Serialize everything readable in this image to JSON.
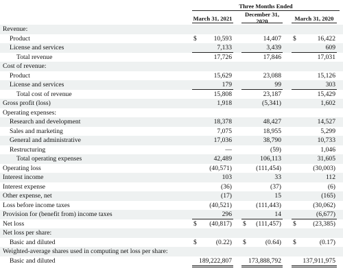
{
  "header": {
    "title": "Three Months Ended",
    "columns": [
      "March 31, 2021",
      "December 31, 2020",
      "March 31, 2020"
    ]
  },
  "table": {
    "rows": [
      {
        "label": "Revenue:"
      },
      {
        "label": "Product",
        "cells": [
          {
            "currency": "$",
            "amount": "10,593"
          },
          {
            "amount": "14,407"
          },
          {
            "currency": "$",
            "amount": "16,422"
          }
        ]
      },
      {
        "label": "License and services",
        "cells": [
          {
            "amount": "7,133"
          },
          {
            "amount": "3,439"
          },
          {
            "amount": "609"
          }
        ]
      },
      {
        "label": "Total revenue",
        "cells": [
          {
            "amount": "17,726"
          },
          {
            "amount": "17,846"
          },
          {
            "amount": "17,031"
          }
        ]
      },
      {
        "label": "Cost of revenue:"
      },
      {
        "label": "Product",
        "cells": [
          {
            "amount": "15,629"
          },
          {
            "amount": "23,088"
          },
          {
            "amount": "15,126"
          }
        ]
      },
      {
        "label": "License and services",
        "cells": [
          {
            "amount": "179"
          },
          {
            "amount": "99"
          },
          {
            "amount": "303"
          }
        ]
      },
      {
        "label": "Total cost of revenue",
        "cells": [
          {
            "amount": "15,808"
          },
          {
            "amount": "23,187"
          },
          {
            "amount": "15,429"
          }
        ]
      },
      {
        "label": "Gross profit (loss)",
        "cells": [
          {
            "amount": "1,918"
          },
          {
            "amount": "(5,341)"
          },
          {
            "amount": "1,602"
          }
        ]
      },
      {
        "label": "Operating expenses:"
      },
      {
        "label": "Research and development",
        "cells": [
          {
            "amount": "18,378"
          },
          {
            "amount": "48,427"
          },
          {
            "amount": "14,527"
          }
        ]
      },
      {
        "label": "Sales and marketing",
        "cells": [
          {
            "amount": "7,075"
          },
          {
            "amount": "18,955"
          },
          {
            "amount": "5,299"
          }
        ]
      },
      {
        "label": "General and administrative",
        "cells": [
          {
            "amount": "17,036"
          },
          {
            "amount": "38,790"
          },
          {
            "amount": "10,733"
          }
        ]
      },
      {
        "label": "Restructuring",
        "cells": [
          {
            "amount": "—"
          },
          {
            "amount": "(59)"
          },
          {
            "amount": "1,046"
          }
        ]
      },
      {
        "label": "Total operating expenses",
        "cells": [
          {
            "amount": "42,489"
          },
          {
            "amount": "106,113"
          },
          {
            "amount": "31,605"
          }
        ]
      },
      {
        "label": "Operating loss",
        "cells": [
          {
            "amount": "(40,571)"
          },
          {
            "amount": "(111,454)"
          },
          {
            "amount": "(30,003)"
          }
        ]
      },
      {
        "label": "Interest income",
        "cells": [
          {
            "amount": "103"
          },
          {
            "amount": "33"
          },
          {
            "amount": "112"
          }
        ]
      },
      {
        "label": "Interest expense",
        "cells": [
          {
            "amount": "(36)"
          },
          {
            "amount": "(37)"
          },
          {
            "amount": "(6)"
          }
        ]
      },
      {
        "label": "Other expense, net",
        "cells": [
          {
            "amount": "(17)"
          },
          {
            "amount": "15"
          },
          {
            "amount": "(165)"
          }
        ]
      },
      {
        "label": "Loss before income taxes",
        "cells": [
          {
            "amount": "(40,521)"
          },
          {
            "amount": "(111,443)"
          },
          {
            "amount": "(30,062)"
          }
        ]
      },
      {
        "label": "Provision for (benefit from) income taxes",
        "cells": [
          {
            "amount": "296"
          },
          {
            "amount": "14"
          },
          {
            "amount": "(6,677)"
          }
        ]
      },
      {
        "label": "Net loss",
        "cells": [
          {
            "currency": "$",
            "amount": "(40,817)"
          },
          {
            "currency": "$",
            "amount": "(111,457)"
          },
          {
            "currency": "$",
            "amount": "(23,385)"
          }
        ]
      },
      {
        "label": "Net loss per share:"
      },
      {
        "label": "Basic and diluted",
        "cells": [
          {
            "currency": "$",
            "amount": "(0.22)"
          },
          {
            "currency": "$",
            "amount": "(0.64)"
          },
          {
            "currency": "$",
            "amount": "(0.17)"
          }
        ]
      },
      {
        "label": "Weighted-average shares used in computing net loss per share:"
      },
      {
        "label": "Basic and diluted",
        "cells": [
          {
            "amount": "189,222,807"
          },
          {
            "amount": "173,888,792"
          },
          {
            "amount": "137,911,975"
          }
        ]
      }
    ]
  }
}
